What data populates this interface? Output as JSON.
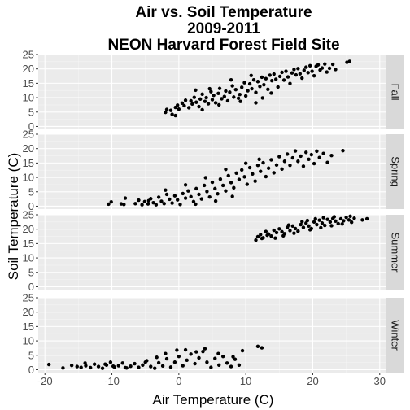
{
  "chart_data": {
    "type": "scatter",
    "title": [
      "Air vs. Soil Temperature",
      "2009-2011",
      "NEON Harvard Forest Field Site"
    ],
    "xlabel": "Air Temperature (C)",
    "ylabel": "Soil Temperature (C)",
    "xlim": [
      -21,
      31
    ],
    "ylim": [
      -1,
      25
    ],
    "xticks": [
      -20,
      -10,
      0,
      10,
      20,
      30
    ],
    "xtick_labels": [
      "-20",
      "-10",
      "0",
      "10",
      "20",
      "30"
    ],
    "yticks": [
      0,
      5,
      10,
      15,
      20,
      25
    ],
    "ytick_labels": [
      "0",
      "5",
      "10",
      "15",
      "20",
      "25"
    ],
    "grid": true,
    "facet_layout": "vertical stack, strip labels on right",
    "panels": [
      {
        "name": "Fall",
        "points": [
          [
            -2,
            4.9
          ],
          [
            -1.8,
            5.9
          ],
          [
            -1.2,
            5.6
          ],
          [
            -1,
            4.2
          ],
          [
            -0.5,
            6.6
          ],
          [
            -0.2,
            7.4
          ],
          [
            0,
            6
          ],
          [
            0.5,
            8.1
          ],
          [
            0.8,
            7.2
          ],
          [
            1,
            9.1
          ],
          [
            1.5,
            6.5
          ],
          [
            1.8,
            8.9
          ],
          [
            2,
            7.8
          ],
          [
            2.3,
            10.1
          ],
          [
            2.6,
            8.4
          ],
          [
            3,
            6.9
          ],
          [
            3.2,
            9.5
          ],
          [
            3.5,
            11.2
          ],
          [
            3.9,
            8.7
          ],
          [
            4.1,
            10
          ],
          [
            4.4,
            7.9
          ],
          [
            4.8,
            12.1
          ],
          [
            5,
            9.3
          ],
          [
            5.2,
            10.8
          ],
          [
            5.5,
            8.2
          ],
          [
            5.9,
            11.5
          ],
          [
            6.1,
            13.2
          ],
          [
            6.4,
            9.6
          ],
          [
            6.8,
            10.4
          ],
          [
            7,
            12.3
          ],
          [
            7.3,
            8.9
          ],
          [
            7.6,
            11.9
          ],
          [
            8,
            14.1
          ],
          [
            8.2,
            10.2
          ],
          [
            8.5,
            12.8
          ],
          [
            8.9,
            9.8
          ],
          [
            9.1,
            11.1
          ],
          [
            9.4,
            13.6
          ],
          [
            9.8,
            15.2
          ],
          [
            10,
            10.6
          ],
          [
            10.3,
            12.4
          ],
          [
            10.6,
            14.8
          ],
          [
            10.9,
            13.1
          ],
          [
            11.2,
            16.2
          ],
          [
            11.5,
            11.8
          ],
          [
            11.8,
            15.6
          ],
          [
            12.1,
            13.9
          ],
          [
            12.4,
            17.1
          ],
          [
            12.7,
            14.5
          ],
          [
            13,
            16.6
          ],
          [
            13.3,
            12.9
          ],
          [
            13.6,
            17.8
          ],
          [
            13.9,
            15.9
          ],
          [
            14.2,
            18.2
          ],
          [
            14.5,
            16.4
          ],
          [
            14.8,
            13.7
          ],
          [
            15.1,
            17.4
          ],
          [
            15.4,
            18.8
          ],
          [
            15.7,
            16.1
          ],
          [
            16,
            19.2
          ],
          [
            16.3,
            17.2
          ],
          [
            16.6,
            14.9
          ],
          [
            16.9,
            18.6
          ],
          [
            17.2,
            19.8
          ],
          [
            17.5,
            17.9
          ],
          [
            17.8,
            20.1
          ],
          [
            18.1,
            18.3
          ],
          [
            18.4,
            16.8
          ],
          [
            18.7,
            19.5
          ],
          [
            19,
            20.6
          ],
          [
            19.3,
            18.7
          ],
          [
            19.6,
            21.1
          ],
          [
            19.9,
            19.2
          ],
          [
            20.2,
            17.6
          ],
          [
            20.5,
            20.9
          ],
          [
            20.8,
            21.4
          ],
          [
            21.1,
            19.6
          ],
          [
            21.4,
            20.3
          ],
          [
            21.8,
            21.7
          ],
          [
            22.1,
            18.9
          ],
          [
            22.5,
            20.2
          ],
          [
            23,
            21.6
          ],
          [
            23.4,
            19.8
          ],
          [
            25.1,
            22.3
          ],
          [
            25.5,
            22.6
          ],
          [
            -0.5,
            3.8
          ],
          [
            3.5,
            5.8
          ],
          [
            6,
            7.5
          ],
          [
            9.2,
            8.7
          ],
          [
            11.5,
            8.2
          ],
          [
            12.5,
            9.9
          ],
          [
            13.8,
            11.6
          ],
          [
            2.5,
            12.6
          ],
          [
            4.6,
            13.1
          ],
          [
            7.8,
            16.2
          ],
          [
            10.8,
            17.7
          ]
        ]
      },
      {
        "name": "Spring",
        "points": [
          [
            -10.5,
            0.7
          ],
          [
            -10.1,
            1.5
          ],
          [
            -8.6,
            0.8
          ],
          [
            -8.2,
            0.6
          ],
          [
            -6.5,
            0.9
          ],
          [
            -6,
            2.1
          ],
          [
            -5.5,
            0.5
          ],
          [
            -5.1,
            1.6
          ],
          [
            -4.6,
            0.8
          ],
          [
            -4.2,
            2.6
          ],
          [
            -3.8,
            1.2
          ],
          [
            -3.4,
            0.5
          ],
          [
            -3,
            3.1
          ],
          [
            -2.6,
            1.7
          ],
          [
            -2.2,
            0.9
          ],
          [
            -1.8,
            4.1
          ],
          [
            -1.4,
            2.4
          ],
          [
            -1,
            1.1
          ],
          [
            -0.6,
            3.6
          ],
          [
            -0.2,
            2.2
          ],
          [
            0.2,
            0.6
          ],
          [
            0.6,
            4.4
          ],
          [
            1,
            2.8
          ],
          [
            1.4,
            5.3
          ],
          [
            1.8,
            3.3
          ],
          [
            2.2,
            1.6
          ],
          [
            2.6,
            6.1
          ],
          [
            3,
            4.1
          ],
          [
            3.4,
            2.5
          ],
          [
            3.8,
            7.2
          ],
          [
            4.2,
            5.1
          ],
          [
            4.6,
            3.2
          ],
          [
            5,
            8.3
          ],
          [
            5.4,
            6.1
          ],
          [
            5.8,
            4.3
          ],
          [
            6.2,
            9.4
          ],
          [
            6.6,
            7.2
          ],
          [
            7,
            5.3
          ],
          [
            7.4,
            10.6
          ],
          [
            7.8,
            8.2
          ],
          [
            8.2,
            6.4
          ],
          [
            8.6,
            11.5
          ],
          [
            9,
            9.3
          ],
          [
            9.4,
            12.6
          ],
          [
            9.8,
            10.2
          ],
          [
            10.2,
            7.6
          ],
          [
            10.6,
            13.4
          ],
          [
            11,
            11.2
          ],
          [
            11.4,
            8.7
          ],
          [
            11.8,
            14.2
          ],
          [
            12.2,
            12.1
          ],
          [
            12.6,
            15.1
          ],
          [
            13,
            10.3
          ],
          [
            13.4,
            13.2
          ],
          [
            13.8,
            16.1
          ],
          [
            14.2,
            11.6
          ],
          [
            14.6,
            14.3
          ],
          [
            15,
            17.2
          ],
          [
            15.4,
            12.9
          ],
          [
            15.8,
            15.6
          ],
          [
            16.2,
            18.1
          ],
          [
            16.6,
            14.2
          ],
          [
            17,
            16.8
          ],
          [
            17.4,
            19.2
          ],
          [
            17.8,
            15.6
          ],
          [
            18.2,
            17.4
          ],
          [
            18.6,
            13.9
          ],
          [
            19,
            18.7
          ],
          [
            19.4,
            16.3
          ],
          [
            19.8,
            17.9
          ],
          [
            20.2,
            14.8
          ],
          [
            20.6,
            19.1
          ],
          [
            21,
            16.9
          ],
          [
            21.6,
            18.3
          ],
          [
            22.2,
            15.2
          ],
          [
            22.8,
            17.6
          ],
          [
            24.5,
            19.3
          ],
          [
            -8,
            2.8
          ],
          [
            -2,
            5.6
          ],
          [
            1,
            7.4
          ],
          [
            4,
            9.9
          ],
          [
            7,
            12.8
          ],
          [
            10,
            14.9
          ],
          [
            12,
            16.3
          ],
          [
            -4.5,
            1.9
          ],
          [
            2.5,
            0.7
          ],
          [
            5.5,
            1.8
          ],
          [
            8,
            3.4
          ]
        ]
      },
      {
        "name": "Summer",
        "points": [
          [
            11.5,
            16.2
          ],
          [
            11.8,
            17.4
          ],
          [
            12.2,
            18.1
          ],
          [
            12.6,
            17
          ],
          [
            13,
            19.2
          ],
          [
            13.4,
            18.3
          ],
          [
            13.8,
            17.6
          ],
          [
            14.2,
            19.6
          ],
          [
            14.6,
            18.8
          ],
          [
            15,
            20.1
          ],
          [
            15.4,
            19.1
          ],
          [
            15.8,
            18.4
          ],
          [
            16.2,
            20.6
          ],
          [
            16.6,
            19.5
          ],
          [
            17,
            21.1
          ],
          [
            17.4,
            20.2
          ],
          [
            17.8,
            19.3
          ],
          [
            18.2,
            21.6
          ],
          [
            18.6,
            20.6
          ],
          [
            19,
            22.1
          ],
          [
            19.4,
            21.1
          ],
          [
            19.8,
            20.2
          ],
          [
            20.2,
            22.5
          ],
          [
            20.6,
            21.6
          ],
          [
            21,
            23.1
          ],
          [
            21.4,
            22.1
          ],
          [
            21.8,
            21.3
          ],
          [
            22.2,
            23.4
          ],
          [
            22.6,
            22.5
          ],
          [
            23,
            23.7
          ],
          [
            23.4,
            22.8
          ],
          [
            23.8,
            21.9
          ],
          [
            24.2,
            23.6
          ],
          [
            24.6,
            22.9
          ],
          [
            25,
            24.1
          ],
          [
            25.4,
            23.2
          ],
          [
            25.8,
            22.4
          ],
          [
            26.2,
            23.8
          ],
          [
            27.4,
            23.2
          ],
          [
            28.1,
            23.6
          ],
          [
            13.2,
            17.9
          ],
          [
            15.6,
            17.7
          ],
          [
            17.2,
            18.6
          ],
          [
            19.6,
            19.8
          ],
          [
            21.2,
            20.5
          ],
          [
            22.8,
            21.2
          ],
          [
            24.4,
            21.8
          ],
          [
            16.4,
            21.4
          ],
          [
            18.4,
            22.6
          ],
          [
            20.4,
            23.6
          ],
          [
            14.4,
            16.9
          ],
          [
            12.4,
            16.8
          ],
          [
            19.2,
            23
          ],
          [
            21.6,
            24
          ],
          [
            23.2,
            24.3
          ],
          [
            25.6,
            24.5
          ]
        ]
      },
      {
        "name": "Winter",
        "points": [
          [
            -19.4,
            1.8
          ],
          [
            -17.3,
            0.6
          ],
          [
            -15.2,
            1.1
          ],
          [
            -14.6,
            0.8
          ],
          [
            -13.9,
            1.4
          ],
          [
            -13.2,
            0.7
          ],
          [
            -12.6,
            1.9
          ],
          [
            -12,
            1.1
          ],
          [
            -11.4,
            0.5
          ],
          [
            -10.8,
            1.6
          ],
          [
            -10.2,
            2.6
          ],
          [
            -9.6,
            0.9
          ],
          [
            -9,
            1.4
          ],
          [
            -8.4,
            2.3
          ],
          [
            -7.8,
            0.6
          ],
          [
            -7.2,
            1.2
          ],
          [
            -6.6,
            2.1
          ],
          [
            -6,
            0.8
          ],
          [
            -5.4,
            1.6
          ],
          [
            -4.8,
            3.1
          ],
          [
            -4.2,
            1.1
          ],
          [
            -3.6,
            0.5
          ],
          [
            -3,
            2.4
          ],
          [
            -2.4,
            1.3
          ],
          [
            -1.8,
            3.8
          ],
          [
            -1.2,
            0.9
          ],
          [
            -0.6,
            2.6
          ],
          [
            0,
            4.6
          ],
          [
            0.6,
            1.4
          ],
          [
            1.2,
            3.3
          ],
          [
            1.8,
            5.4
          ],
          [
            2.4,
            2.1
          ],
          [
            3,
            4.1
          ],
          [
            3.6,
            6.3
          ],
          [
            4.2,
            2.6
          ],
          [
            4.8,
            0.8
          ],
          [
            5.4,
            3.9
          ],
          [
            6,
            1.6
          ],
          [
            6.6,
            4.6
          ],
          [
            7.2,
            2.3
          ],
          [
            7.8,
            1.1
          ],
          [
            8.4,
            3.6
          ],
          [
            9,
            1.6
          ],
          [
            11.8,
            8.1
          ],
          [
            12.4,
            7.6
          ],
          [
            -16,
            1.5
          ],
          [
            -11,
            1.9
          ],
          [
            -8,
            0.7
          ],
          [
            -5,
            2.6
          ],
          [
            -2,
            5.6
          ],
          [
            1,
            6.9
          ],
          [
            3.9,
            7.3
          ],
          [
            5.9,
            5.6
          ],
          [
            -3.3,
            4.3
          ],
          [
            -0.3,
            6.8
          ],
          [
            2.6,
            6.2
          ],
          [
            8.1,
            4.5
          ],
          [
            9.5,
            6.6
          ],
          [
            -14,
            2.3
          ],
          [
            -9.8,
            1.2
          ]
        ]
      }
    ]
  }
}
